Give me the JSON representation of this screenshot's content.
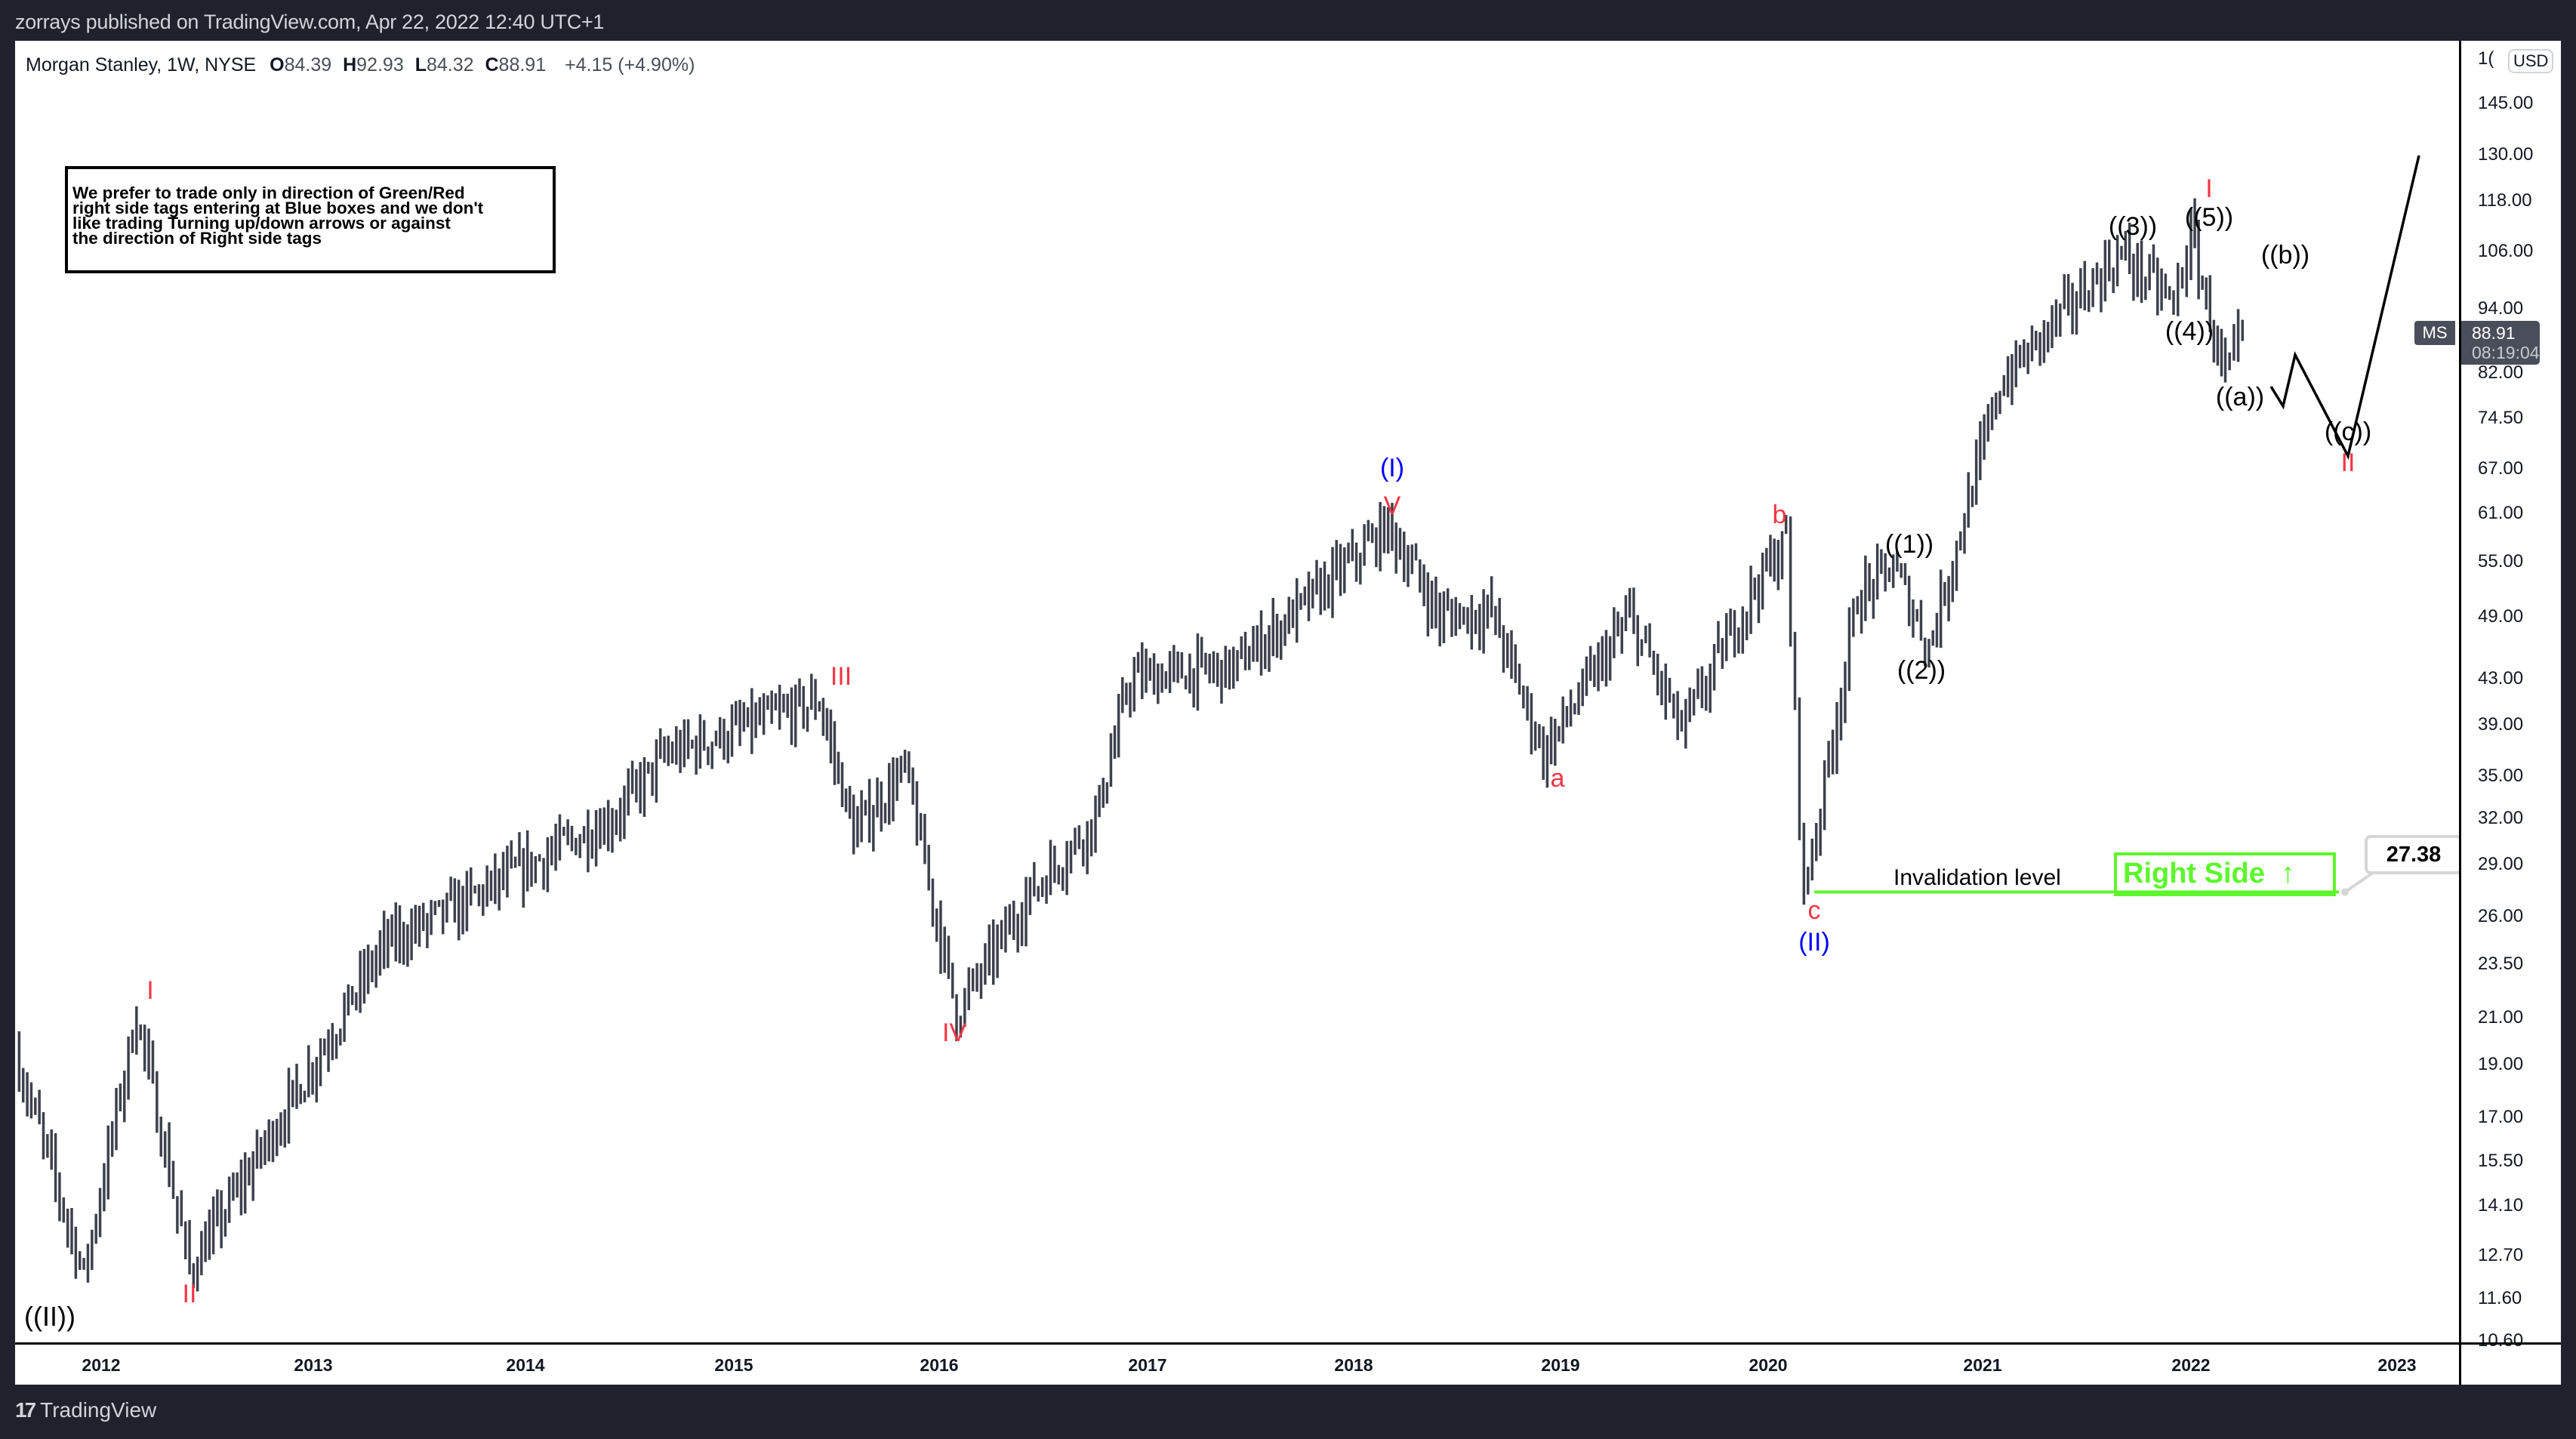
{
  "header": {
    "published_by": "zorrays published on TradingView.com, Apr 22, 2022 12:40 UTC+1"
  },
  "legend": {
    "symbol": "Morgan Stanley, 1W, NYSE",
    "open_label": "O",
    "open": "84.39",
    "high_label": "H",
    "high": "92.93",
    "low_label": "L",
    "low": "84.32",
    "close_label": "C",
    "close": "88.91",
    "change": "+4.15 (+4.90%)"
  },
  "note": {
    "lines": [
      "We prefer to trade only in direction of Green/Red",
      "right side tags entering at Blue boxes and we don't",
      "like trading Turning up/down arrows or against",
      "the direction of Right side tags"
    ]
  },
  "price_axis": {
    "currency": "USD",
    "top_partial": "1(",
    "ticks": [
      "145.00",
      "130.00",
      "118.00",
      "106.00",
      "94.00",
      "82.00",
      "74.50",
      "67.00",
      "61.00",
      "55.00",
      "49.00",
      "43.00",
      "39.00",
      "35.00",
      "32.00",
      "29.00",
      "26.00",
      "23.50",
      "21.00",
      "19.00",
      "17.00",
      "15.50",
      "14.10",
      "12.70",
      "11.60",
      "10.60"
    ],
    "last_price": {
      "symbol": "MS",
      "price": "88.91",
      "countdown": "08:19:04"
    }
  },
  "time_axis": {
    "ticks": [
      "2012",
      "2013",
      "2014",
      "2015",
      "2016",
      "2017",
      "2018",
      "2019",
      "2020",
      "2021",
      "2022",
      "2023"
    ]
  },
  "annotations": {
    "invalidation_label": "Invalidation level",
    "right_side_label": "Right Side",
    "right_side_arrow": "↑",
    "invalidation_price": "27.38",
    "colors": {
      "red": "#f23645",
      "blue": "#0000ff",
      "green": "#5cf72b",
      "bars": "#3d414d"
    }
  },
  "wave_labels": {
    "w_IIcc": "((II))",
    "w_I_2012": "I",
    "w_II_2012": "II",
    "w_III": "III",
    "w_IV": "IV",
    "w_V": "V",
    "w_I_blue": "(I)",
    "w_a": "a",
    "w_b": "b",
    "w_c": "c",
    "w_II_blue": "(II)",
    "w_1": "((1))",
    "w_2": "((2))",
    "w_3": "((3))",
    "w_4": "((4))",
    "w_5": "((5))",
    "w_I_2022": "I",
    "w_a2": "((a))",
    "w_b2": "((b))",
    "w_c2": "((c))",
    "w_II_2022": "II"
  },
  "footer": {
    "brand": "TradingView",
    "logo": "17"
  },
  "chart_data": {
    "type": "ohlc-bar",
    "title": "Morgan Stanley, 1W, NYSE",
    "scale": "log",
    "xlabel": "",
    "ylabel": "USD",
    "ylim": [
      10.6,
      150
    ],
    "x_ticks": [
      "2012",
      "2013",
      "2014",
      "2015",
      "2016",
      "2017",
      "2018",
      "2019",
      "2020",
      "2021",
      "2022",
      "2023"
    ],
    "y_ticks": [
      145,
      130,
      118,
      106,
      94,
      82,
      74.5,
      67,
      61,
      55,
      49,
      43,
      39,
      35,
      32,
      29,
      26,
      23.5,
      21,
      19,
      17,
      15.5,
      14.1,
      12.7,
      11.6,
      10.6
    ],
    "last_bar": {
      "open": 84.39,
      "high": 92.93,
      "low": 84.32,
      "close": 88.91,
      "change": 4.15,
      "change_pct": 4.9
    },
    "price_path_waypoints": [
      {
        "date": "2011-09",
        "price": 19.5
      },
      {
        "date": "2011-12",
        "price": 12.2,
        "label": "((II))"
      },
      {
        "date": "2012-03",
        "price": 21.2,
        "label": "I"
      },
      {
        "date": "2012-06",
        "price": 12.3,
        "label": "II"
      },
      {
        "date": "2013-05",
        "price": 24.5
      },
      {
        "date": "2013-09",
        "price": 26.5
      },
      {
        "date": "2014-06",
        "price": 32.0
      },
      {
        "date": "2014-09",
        "price": 36.5
      },
      {
        "date": "2015-06",
        "price": 41.0,
        "label": "III"
      },
      {
        "date": "2015-08",
        "price": 31.0
      },
      {
        "date": "2015-11",
        "price": 35.5
      },
      {
        "date": "2016-02",
        "price": 21.2,
        "label": "IV"
      },
      {
        "date": "2016-06",
        "price": 27.0
      },
      {
        "date": "2016-10",
        "price": 32.0
      },
      {
        "date": "2016-12",
        "price": 43.0
      },
      {
        "date": "2017-06",
        "price": 44.0
      },
      {
        "date": "2017-12",
        "price": 53.5
      },
      {
        "date": "2018-03",
        "price": 59.3,
        "label": "V / (I)"
      },
      {
        "date": "2018-06",
        "price": 49.0
      },
      {
        "date": "2018-09",
        "price": 49.5
      },
      {
        "date": "2018-12",
        "price": 36.7,
        "label": "a"
      },
      {
        "date": "2019-05",
        "price": 49.0
      },
      {
        "date": "2019-08",
        "price": 38.5
      },
      {
        "date": "2019-12",
        "price": 51.5
      },
      {
        "date": "2020-02",
        "price": 57.6,
        "label": "b"
      },
      {
        "date": "2020-03",
        "price": 27.2,
        "label": "c / (II)"
      },
      {
        "date": "2020-06",
        "price": 51.0
      },
      {
        "date": "2020-08",
        "price": 54.5,
        "label": "((1))"
      },
      {
        "date": "2020-10",
        "price": 46.0,
        "label": "((2))"
      },
      {
        "date": "2021-02",
        "price": 80.0
      },
      {
        "date": "2021-05",
        "price": 91.0
      },
      {
        "date": "2021-09",
        "price": 105.5,
        "label": "((3))"
      },
      {
        "date": "2021-12",
        "price": 95.0,
        "label": "((4))"
      },
      {
        "date": "2022-01",
        "price": 109.7,
        "label": "((5)) / I"
      },
      {
        "date": "2022-03",
        "price": 80.5,
        "label": "((a))"
      },
      {
        "date": "2022-04",
        "price": 88.91
      }
    ],
    "projection": [
      {
        "date": "2022-05",
        "price": 86,
        "label": ""
      },
      {
        "date": "2022-06",
        "price": 99,
        "label": "((b))"
      },
      {
        "date": "2022-10",
        "price": 75,
        "label": "((c)) / II"
      },
      {
        "date": "2023-02",
        "price": 141
      }
    ],
    "invalidation_level": 27.38
  }
}
